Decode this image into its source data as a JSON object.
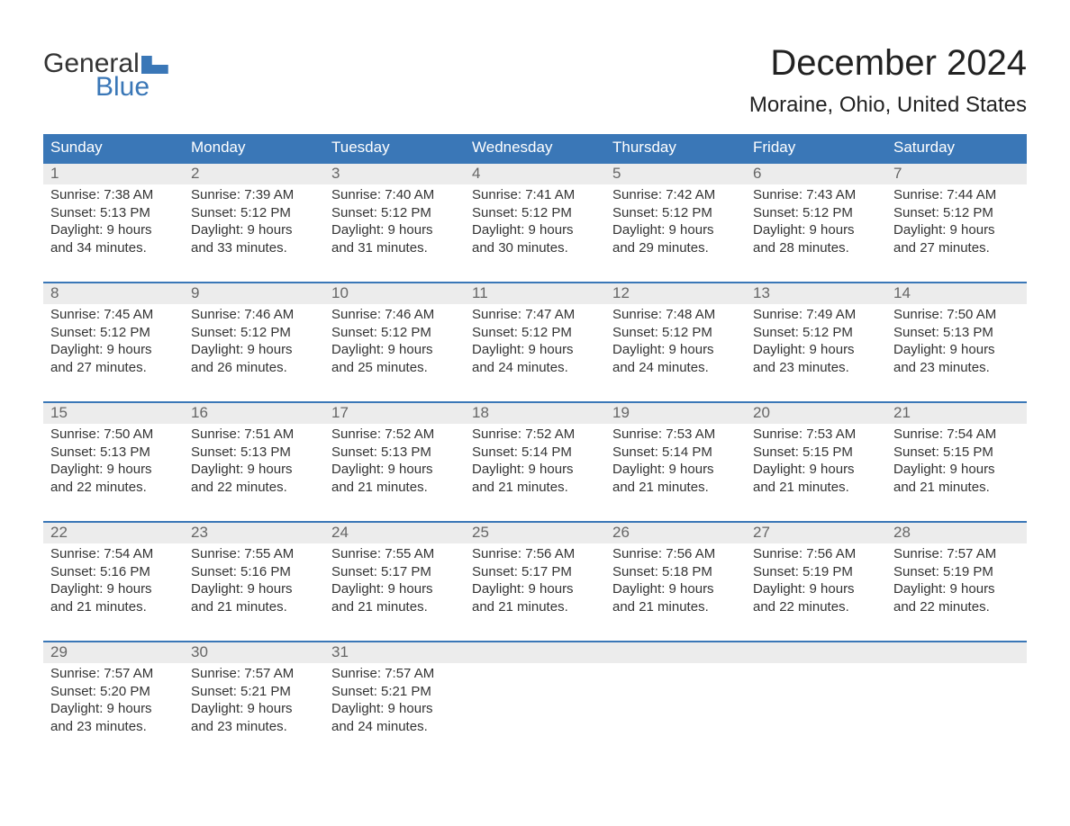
{
  "logo": {
    "word1": "General",
    "word2": "Blue"
  },
  "title": "December 2024",
  "location": "Moraine, Ohio, United States",
  "colors": {
    "brand_blue": "#3a77b7",
    "header_text": "#ffffff",
    "daynum_bg": "#ececec",
    "daynum_text": "#666666",
    "body_text": "#333333",
    "background": "#ffffff"
  },
  "typography": {
    "title_fontsize": 40,
    "location_fontsize": 24,
    "dayhead_fontsize": 17,
    "cell_fontsize": 15,
    "logo_fontsize": 30
  },
  "day_headers": [
    "Sunday",
    "Monday",
    "Tuesday",
    "Wednesday",
    "Thursday",
    "Friday",
    "Saturday"
  ],
  "weeks": [
    [
      {
        "n": "1",
        "sr": "Sunrise: 7:38 AM",
        "ss": "Sunset: 5:13 PM",
        "dl": "Daylight: 9 hours and 34 minutes."
      },
      {
        "n": "2",
        "sr": "Sunrise: 7:39 AM",
        "ss": "Sunset: 5:12 PM",
        "dl": "Daylight: 9 hours and 33 minutes."
      },
      {
        "n": "3",
        "sr": "Sunrise: 7:40 AM",
        "ss": "Sunset: 5:12 PM",
        "dl": "Daylight: 9 hours and 31 minutes."
      },
      {
        "n": "4",
        "sr": "Sunrise: 7:41 AM",
        "ss": "Sunset: 5:12 PM",
        "dl": "Daylight: 9 hours and 30 minutes."
      },
      {
        "n": "5",
        "sr": "Sunrise: 7:42 AM",
        "ss": "Sunset: 5:12 PM",
        "dl": "Daylight: 9 hours and 29 minutes."
      },
      {
        "n": "6",
        "sr": "Sunrise: 7:43 AM",
        "ss": "Sunset: 5:12 PM",
        "dl": "Daylight: 9 hours and 28 minutes."
      },
      {
        "n": "7",
        "sr": "Sunrise: 7:44 AM",
        "ss": "Sunset: 5:12 PM",
        "dl": "Daylight: 9 hours and 27 minutes."
      }
    ],
    [
      {
        "n": "8",
        "sr": "Sunrise: 7:45 AM",
        "ss": "Sunset: 5:12 PM",
        "dl": "Daylight: 9 hours and 27 minutes."
      },
      {
        "n": "9",
        "sr": "Sunrise: 7:46 AM",
        "ss": "Sunset: 5:12 PM",
        "dl": "Daylight: 9 hours and 26 minutes."
      },
      {
        "n": "10",
        "sr": "Sunrise: 7:46 AM",
        "ss": "Sunset: 5:12 PM",
        "dl": "Daylight: 9 hours and 25 minutes."
      },
      {
        "n": "11",
        "sr": "Sunrise: 7:47 AM",
        "ss": "Sunset: 5:12 PM",
        "dl": "Daylight: 9 hours and 24 minutes."
      },
      {
        "n": "12",
        "sr": "Sunrise: 7:48 AM",
        "ss": "Sunset: 5:12 PM",
        "dl": "Daylight: 9 hours and 24 minutes."
      },
      {
        "n": "13",
        "sr": "Sunrise: 7:49 AM",
        "ss": "Sunset: 5:12 PM",
        "dl": "Daylight: 9 hours and 23 minutes."
      },
      {
        "n": "14",
        "sr": "Sunrise: 7:50 AM",
        "ss": "Sunset: 5:13 PM",
        "dl": "Daylight: 9 hours and 23 minutes."
      }
    ],
    [
      {
        "n": "15",
        "sr": "Sunrise: 7:50 AM",
        "ss": "Sunset: 5:13 PM",
        "dl": "Daylight: 9 hours and 22 minutes."
      },
      {
        "n": "16",
        "sr": "Sunrise: 7:51 AM",
        "ss": "Sunset: 5:13 PM",
        "dl": "Daylight: 9 hours and 22 minutes."
      },
      {
        "n": "17",
        "sr": "Sunrise: 7:52 AM",
        "ss": "Sunset: 5:13 PM",
        "dl": "Daylight: 9 hours and 21 minutes."
      },
      {
        "n": "18",
        "sr": "Sunrise: 7:52 AM",
        "ss": "Sunset: 5:14 PM",
        "dl": "Daylight: 9 hours and 21 minutes."
      },
      {
        "n": "19",
        "sr": "Sunrise: 7:53 AM",
        "ss": "Sunset: 5:14 PM",
        "dl": "Daylight: 9 hours and 21 minutes."
      },
      {
        "n": "20",
        "sr": "Sunrise: 7:53 AM",
        "ss": "Sunset: 5:15 PM",
        "dl": "Daylight: 9 hours and 21 minutes."
      },
      {
        "n": "21",
        "sr": "Sunrise: 7:54 AM",
        "ss": "Sunset: 5:15 PM",
        "dl": "Daylight: 9 hours and 21 minutes."
      }
    ],
    [
      {
        "n": "22",
        "sr": "Sunrise: 7:54 AM",
        "ss": "Sunset: 5:16 PM",
        "dl": "Daylight: 9 hours and 21 minutes."
      },
      {
        "n": "23",
        "sr": "Sunrise: 7:55 AM",
        "ss": "Sunset: 5:16 PM",
        "dl": "Daylight: 9 hours and 21 minutes."
      },
      {
        "n": "24",
        "sr": "Sunrise: 7:55 AM",
        "ss": "Sunset: 5:17 PM",
        "dl": "Daylight: 9 hours and 21 minutes."
      },
      {
        "n": "25",
        "sr": "Sunrise: 7:56 AM",
        "ss": "Sunset: 5:17 PM",
        "dl": "Daylight: 9 hours and 21 minutes."
      },
      {
        "n": "26",
        "sr": "Sunrise: 7:56 AM",
        "ss": "Sunset: 5:18 PM",
        "dl": "Daylight: 9 hours and 21 minutes."
      },
      {
        "n": "27",
        "sr": "Sunrise: 7:56 AM",
        "ss": "Sunset: 5:19 PM",
        "dl": "Daylight: 9 hours and 22 minutes."
      },
      {
        "n": "28",
        "sr": "Sunrise: 7:57 AM",
        "ss": "Sunset: 5:19 PM",
        "dl": "Daylight: 9 hours and 22 minutes."
      }
    ],
    [
      {
        "n": "29",
        "sr": "Sunrise: 7:57 AM",
        "ss": "Sunset: 5:20 PM",
        "dl": "Daylight: 9 hours and 23 minutes."
      },
      {
        "n": "30",
        "sr": "Sunrise: 7:57 AM",
        "ss": "Sunset: 5:21 PM",
        "dl": "Daylight: 9 hours and 23 minutes."
      },
      {
        "n": "31",
        "sr": "Sunrise: 7:57 AM",
        "ss": "Sunset: 5:21 PM",
        "dl": "Daylight: 9 hours and 24 minutes."
      },
      {
        "n": "",
        "sr": "",
        "ss": "",
        "dl": ""
      },
      {
        "n": "",
        "sr": "",
        "ss": "",
        "dl": ""
      },
      {
        "n": "",
        "sr": "",
        "ss": "",
        "dl": ""
      },
      {
        "n": "",
        "sr": "",
        "ss": "",
        "dl": ""
      }
    ]
  ]
}
